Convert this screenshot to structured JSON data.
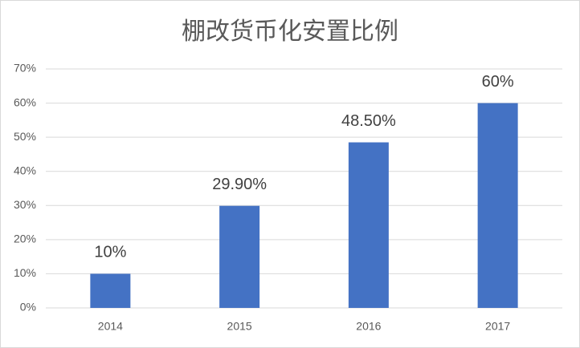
{
  "chart_data": {
    "type": "bar",
    "title": "棚改货币化安置比例",
    "categories": [
      "2014",
      "2015",
      "2016",
      "2017"
    ],
    "values": [
      10,
      29.9,
      48.5,
      60
    ],
    "value_labels": [
      "10%",
      "29.90%",
      "48.50%",
      "60%"
    ],
    "color": "#4472c4",
    "ylim": [
      0,
      70
    ],
    "yticks": [
      {
        "value": 0,
        "label": "0%"
      },
      {
        "value": 10,
        "label": "10%"
      },
      {
        "value": 20,
        "label": "20%"
      },
      {
        "value": 30,
        "label": "30%"
      },
      {
        "value": 40,
        "label": "40%"
      },
      {
        "value": 50,
        "label": "50%"
      },
      {
        "value": 60,
        "label": "60%"
      },
      {
        "value": 70,
        "label": "70%"
      }
    ],
    "grid": true
  }
}
